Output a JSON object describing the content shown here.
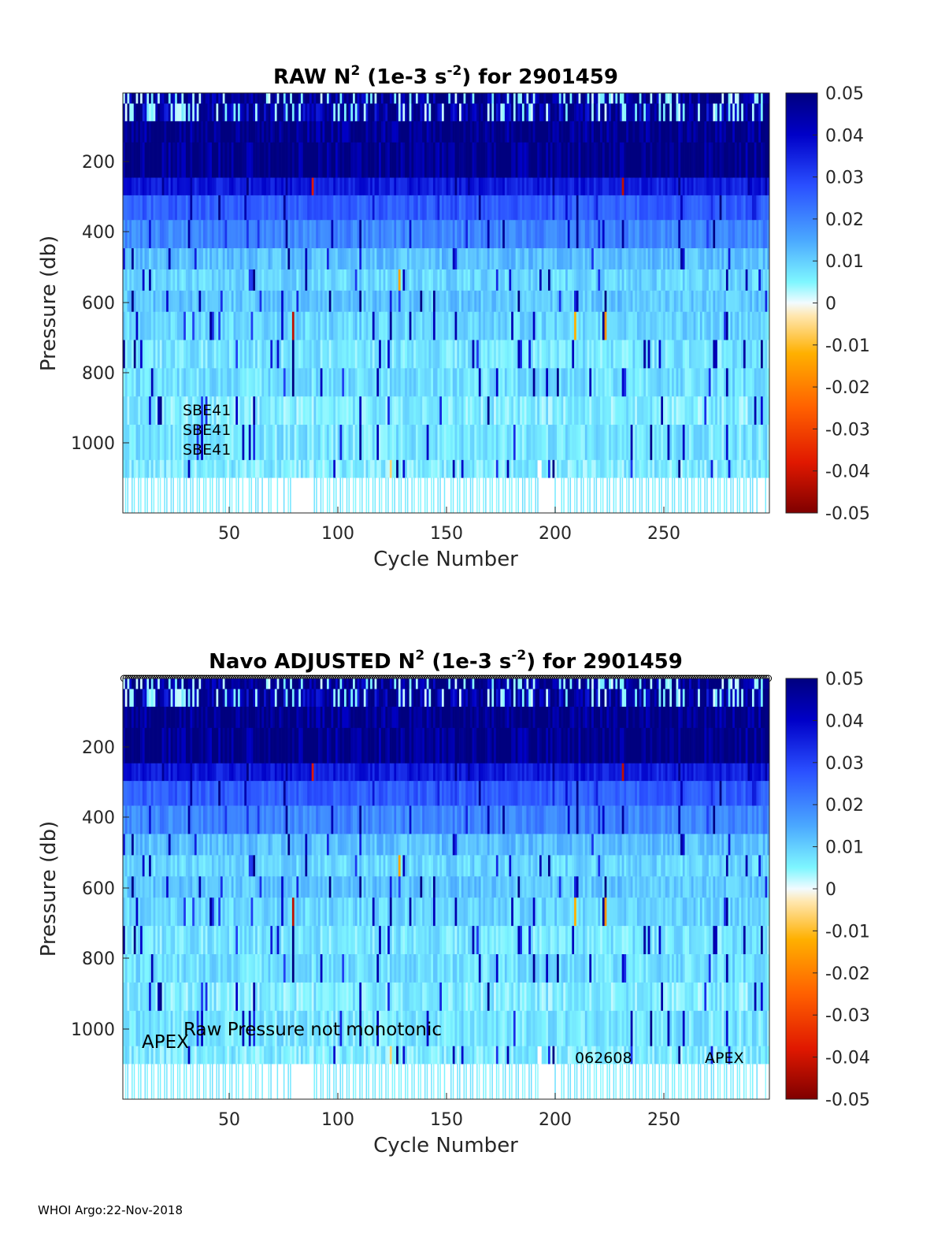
{
  "footer": "WHOI Argo:22-Nov-2018",
  "chart_data": [
    {
      "type": "heatmap",
      "title_parts": [
        "RAW N",
        "2",
        " (1e-3 s",
        "-2",
        ") for 2901459"
      ],
      "xlabel": "Cycle Number",
      "ylabel": "Pressure (db)",
      "xlim": [
        1,
        298
      ],
      "ylim": [
        1190,
        0
      ],
      "xticks": [
        50,
        100,
        150,
        200,
        250
      ],
      "yticks": [
        200,
        400,
        600,
        800,
        1000
      ],
      "colorbar": {
        "range": [
          -0.05,
          0.05
        ],
        "ticks": [
          "0.05",
          "0.04",
          "0.03",
          "0.02",
          "0.01",
          "0",
          "-0.01",
          "-0.02",
          "-0.03",
          "-0.04",
          "-0.05"
        ]
      },
      "annotations": [
        "SBE41",
        "SBE41",
        "SBE41"
      ],
      "qc_markers": false
    },
    {
      "type": "heatmap",
      "title_parts": [
        "Navo  ADJUSTED N",
        "2",
        " (1e-3 s",
        "-2",
        ") for 2901459"
      ],
      "xlabel": "Cycle Number",
      "ylabel": "Pressure (db)",
      "xlim": [
        1,
        298
      ],
      "ylim": [
        1190,
        0
      ],
      "xticks": [
        50,
        100,
        150,
        200,
        250
      ],
      "yticks": [
        200,
        400,
        600,
        800,
        1000
      ],
      "colorbar": {
        "range": [
          -0.05,
          0.05
        ],
        "ticks": [
          "0.05",
          "0.04",
          "0.03",
          "0.02",
          "0.01",
          "0",
          "-0.01",
          "-0.02",
          "-0.03",
          "-0.04",
          "-0.05"
        ]
      },
      "annotations": [
        "APEX",
        "Raw Pressure not monotonic",
        "062608",
        "APEX"
      ],
      "qc_markers": true
    }
  ]
}
